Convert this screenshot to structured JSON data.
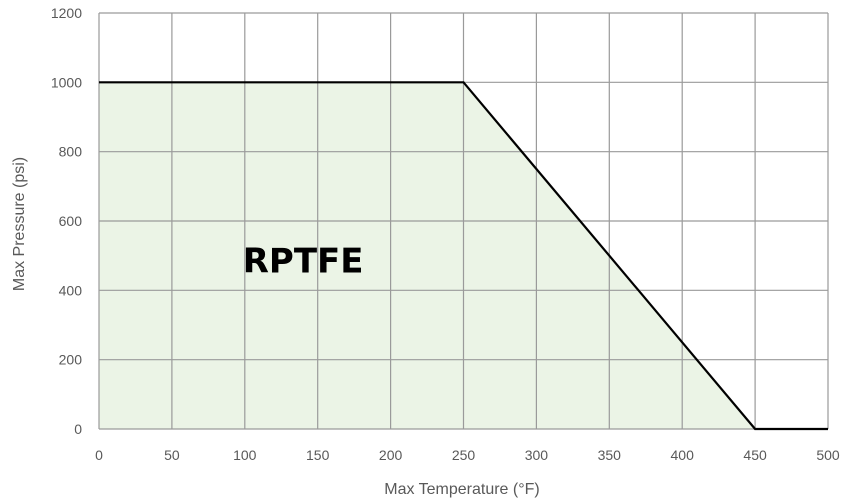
{
  "chart_data": {
    "type": "area",
    "title": "",
    "xlabel": "Max Temperature (°F)",
    "ylabel": "Max Pressure (psi)",
    "xlim": [
      0,
      500
    ],
    "ylim": [
      0,
      1200
    ],
    "x_ticks": [
      0,
      50,
      100,
      150,
      200,
      250,
      300,
      350,
      400,
      450,
      500
    ],
    "y_ticks": [
      0,
      200,
      400,
      600,
      800,
      1000,
      1200
    ],
    "x_tick_labels": [
      "0",
      "50",
      "100",
      "150",
      "200",
      "250",
      "300",
      "350",
      "400",
      "450",
      "500"
    ],
    "y_tick_labels": [
      "0",
      "200",
      "400",
      "600",
      "800",
      "1000",
      "1200"
    ],
    "grid": true,
    "legend": "none",
    "series": [
      {
        "x": [
          0,
          250,
          450,
          500
        ],
        "y": [
          1000,
          1000,
          0,
          0
        ]
      }
    ],
    "fill": {
      "x": [
        0,
        250,
        450
      ],
      "y": [
        1000,
        1000,
        0
      ]
    },
    "annotations": [
      {
        "text": "RPTFE",
        "x": 140,
        "y": 500
      }
    ],
    "colors": {
      "fill": "#ebf4e6",
      "line": "#000000",
      "grid": "#9a9a9a",
      "tick_text": "#595959"
    }
  }
}
